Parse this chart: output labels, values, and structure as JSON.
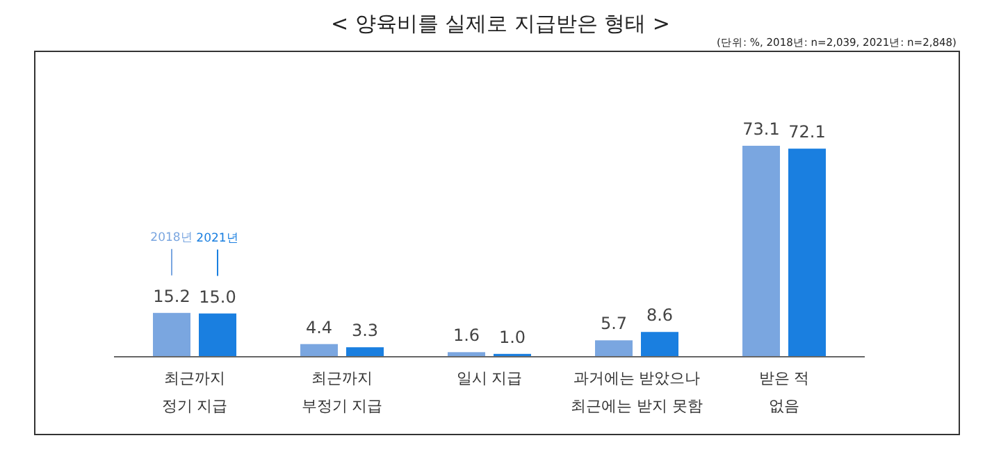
{
  "chart_data": {
    "type": "bar",
    "title": "< 양육비를 실제로 지급받은 형태 >",
    "annotations": [
      "(단위: %, 2018년: n=2,039, 2021년: n=2,848)"
    ],
    "categories": [
      "최근까지\n정기 지급",
      "최근까지\n부정기 지급",
      "일시 지급",
      "과거에는 받았으나\n최근에는 받지 못함",
      "받은 적\n없음"
    ],
    "series": [
      {
        "name": "2018년",
        "color": "#7aa6e0",
        "values": [
          15.2,
          4.4,
          1.6,
          5.7,
          73.1
        ],
        "value_labels": [
          "15.2",
          "4.4",
          "1.6",
          "5.7",
          "73.1"
        ]
      },
      {
        "name": "2021년",
        "color": "#1a7fe0",
        "values": [
          15.0,
          3.3,
          1.0,
          8.6,
          72.1
        ],
        "value_labels": [
          "15.0",
          "3.3",
          "1.0",
          "8.6",
          "72.1"
        ]
      }
    ]
  }
}
